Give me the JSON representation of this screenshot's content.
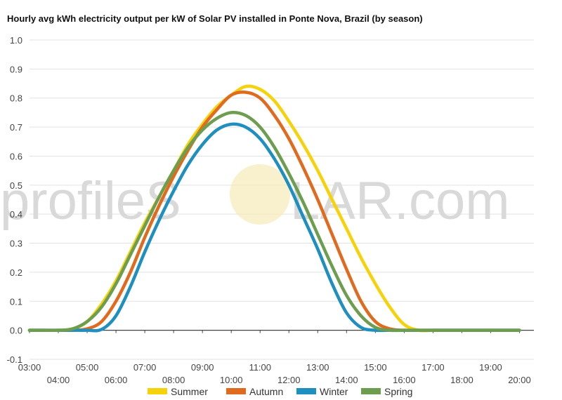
{
  "chart_data": {
    "type": "line",
    "title": "Hourly avg kWh electricity output per kW of Solar PV installed in Ponte Nova, Brazil (by season)",
    "xlabel": "",
    "ylabel": "",
    "ylim": [
      -0.1,
      1.0
    ],
    "yticks": [
      "1.0",
      "0.9",
      "0.8",
      "0.7",
      "0.6",
      "0.5",
      "0.4",
      "0.3",
      "0.2",
      "0.1",
      "0.0",
      "-0.1"
    ],
    "xtick_labels": [
      "03:00",
      "04:00",
      "05:00",
      "06:00",
      "07:00",
      "08:00",
      "09:00",
      "10:00",
      "11:00",
      "12:00",
      "13:00",
      "14:00",
      "15:00",
      "16:00",
      "17:00",
      "18:00",
      "19:00",
      "20:00"
    ],
    "grid": true,
    "legend_position": "bottom",
    "x": [
      3,
      3.5,
      4,
      4.5,
      5,
      5.5,
      6,
      6.5,
      7,
      7.5,
      8,
      8.5,
      9,
      9.5,
      10,
      10.5,
      11,
      11.5,
      12,
      12.5,
      13,
      13.5,
      14,
      14.5,
      15,
      15.5,
      16,
      16.5,
      17,
      17.5,
      18,
      18.5,
      19,
      19.5,
      20
    ],
    "series": [
      {
        "name": "Summer",
        "color": "#f5d20a",
        "values": [
          0,
          0,
          0,
          0.005,
          0.03,
          0.09,
          0.17,
          0.27,
          0.37,
          0.46,
          0.55,
          0.64,
          0.71,
          0.77,
          0.81,
          0.84,
          0.83,
          0.79,
          0.72,
          0.64,
          0.55,
          0.45,
          0.35,
          0.25,
          0.16,
          0.08,
          0.02,
          0,
          0,
          0,
          0,
          0,
          0,
          0,
          0
        ]
      },
      {
        "name": "Autumn",
        "color": "#e06b1f",
        "values": [
          0,
          0,
          0,
          0,
          0.005,
          0.03,
          0.1,
          0.2,
          0.32,
          0.43,
          0.53,
          0.62,
          0.7,
          0.76,
          0.81,
          0.82,
          0.8,
          0.74,
          0.66,
          0.56,
          0.45,
          0.33,
          0.21,
          0.1,
          0.03,
          0.005,
          0,
          0,
          0,
          0,
          0,
          0,
          0,
          0,
          0
        ]
      },
      {
        "name": "Winter",
        "color": "#1f8fbf",
        "values": [
          0,
          0,
          0,
          0,
          0,
          0.003,
          0.05,
          0.15,
          0.27,
          0.38,
          0.48,
          0.57,
          0.64,
          0.69,
          0.71,
          0.7,
          0.66,
          0.59,
          0.5,
          0.39,
          0.28,
          0.16,
          0.06,
          0.01,
          0,
          0,
          0,
          0,
          0,
          0,
          0,
          0,
          0,
          0,
          0
        ]
      },
      {
        "name": "Spring",
        "color": "#6d9e4f",
        "values": [
          0,
          0,
          0,
          0.005,
          0.03,
          0.08,
          0.16,
          0.26,
          0.36,
          0.46,
          0.55,
          0.63,
          0.69,
          0.73,
          0.75,
          0.74,
          0.7,
          0.63,
          0.54,
          0.44,
          0.33,
          0.22,
          0.12,
          0.05,
          0.01,
          0,
          0,
          0,
          0,
          0,
          0,
          0,
          0,
          0,
          0
        ]
      }
    ]
  },
  "watermark": {
    "prefix": "profileS",
    "suffix": "LAR.com"
  }
}
